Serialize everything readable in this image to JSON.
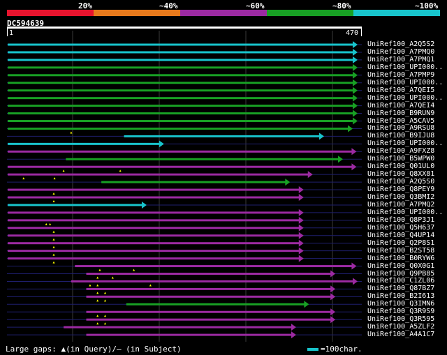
{
  "legend": {
    "segments": [
      {
        "color": "#e8142e"
      },
      {
        "color": "#e87a1c"
      },
      {
        "color": "#9c2aa2"
      },
      {
        "color": "#18a024"
      },
      {
        "color": "#18c4cc"
      }
    ],
    "labels": [
      "20%",
      "~40%",
      "~60%",
      "~80%",
      "~100%"
    ]
  },
  "query": {
    "id": "DC594639",
    "start": "1",
    "end": "470",
    "length": 470
  },
  "colors": {
    "cyan": "#18c4cc",
    "green": "#18a024",
    "purple": "#9c2aa2",
    "line": "#1f1f6e",
    "grid": "#3a3a3a",
    "marker": "#ffff00"
  },
  "hits": [
    {
      "label": "UniRef100_A2Q5S2",
      "color": "cyan",
      "start": 1,
      "end": 470,
      "gaps": []
    },
    {
      "label": "UniRef100_A7PMQ0",
      "color": "cyan",
      "start": 1,
      "end": 470,
      "gaps": []
    },
    {
      "label": "UniRef100_A7PMQ1",
      "color": "cyan",
      "start": 1,
      "end": 470,
      "gaps": []
    },
    {
      "label": "UniRef100_UPI000..",
      "color": "green",
      "start": 1,
      "end": 470,
      "gaps": []
    },
    {
      "label": "UniRef100_A7PMP9",
      "color": "green",
      "start": 1,
      "end": 470,
      "gaps": []
    },
    {
      "label": "UniRef100_UPI000..",
      "color": "green",
      "start": 1,
      "end": 467,
      "gaps": []
    },
    {
      "label": "UniRef100_A7QEI5",
      "color": "green",
      "start": 1,
      "end": 467,
      "gaps": []
    },
    {
      "label": "UniRef100_UPI000..",
      "color": "green",
      "start": 1,
      "end": 467,
      "gaps": []
    },
    {
      "label": "UniRef100_A7QEI4",
      "color": "green",
      "start": 1,
      "end": 467,
      "gaps": []
    },
    {
      "label": "UniRef100_B9RUN9",
      "color": "green",
      "start": 1,
      "end": 470,
      "gaps": []
    },
    {
      "label": "UniRef100_A5CAV5",
      "color": "green",
      "start": 1,
      "end": 467,
      "gaps": []
    },
    {
      "label": "UniRef100_A9RSU8",
      "color": "green",
      "start": 1,
      "end": 458,
      "gaps": [
        85
      ]
    },
    {
      "label": "UniRef100_B9IJU8",
      "color": "cyan",
      "start": 155,
      "end": 420,
      "gaps": []
    },
    {
      "label": "UniRef100_UPI000..",
      "color": "cyan",
      "start": 1,
      "end": 208,
      "gaps": []
    },
    {
      "label": "UniRef100_A9FXZ8",
      "color": "purple",
      "start": 1,
      "end": 463,
      "gaps": []
    },
    {
      "label": "UniRef100_B5WPW0",
      "color": "green",
      "start": 78,
      "end": 445,
      "gaps": []
    },
    {
      "label": "UniRef100_Q01UL0",
      "color": "purple",
      "start": 1,
      "end": 463,
      "gaps": [
        75,
        150
      ]
    },
    {
      "label": "UniRef100_Q8XX81",
      "color": "purple",
      "start": 1,
      "end": 405,
      "gaps": [
        22,
        63
      ]
    },
    {
      "label": "UniRef100_A2Q5S0",
      "color": "green",
      "start": 125,
      "end": 375,
      "gaps": []
    },
    {
      "label": "UniRef100_Q8PEY9",
      "color": "purple",
      "start": 1,
      "end": 393,
      "gaps": [
        62
      ]
    },
    {
      "label": "UniRef100_Q3BMI2",
      "color": "purple",
      "start": 1,
      "end": 393,
      "gaps": [
        62
      ]
    },
    {
      "label": "UniRef100_A7PMQ2",
      "color": "cyan",
      "start": 1,
      "end": 185,
      "gaps": []
    },
    {
      "label": "UniRef100_UPI000..",
      "color": "purple",
      "start": 1,
      "end": 393,
      "gaps": []
    },
    {
      "label": "UniRef100_Q8P3J1",
      "color": "purple",
      "start": 1,
      "end": 393,
      "gaps": [
        52,
        57
      ]
    },
    {
      "label": "UniRef100_Q5H637",
      "color": "purple",
      "start": 1,
      "end": 393,
      "gaps": [
        62
      ]
    },
    {
      "label": "UniRef100_Q4UP14",
      "color": "purple",
      "start": 1,
      "end": 393,
      "gaps": [
        62
      ]
    },
    {
      "label": "UniRef100_Q2P8S1",
      "color": "purple",
      "start": 1,
      "end": 393,
      "gaps": [
        62
      ]
    },
    {
      "label": "UniRef100_B2ST58",
      "color": "purple",
      "start": 1,
      "end": 393,
      "gaps": [
        62
      ]
    },
    {
      "label": "UniRef100_B0RYW6",
      "color": "purple",
      "start": 1,
      "end": 393,
      "gaps": [
        62
      ]
    },
    {
      "label": "UniRef100_Q0X0G1",
      "color": "purple",
      "start": 90,
      "end": 463,
      "gaps": [
        123,
        168
      ]
    },
    {
      "label": "UniRef100_Q9PB85",
      "color": "purple",
      "start": 105,
      "end": 435,
      "gaps": [
        120,
        140
      ]
    },
    {
      "label": "UniRef100_C1ZL06",
      "color": "purple",
      "start": 85,
      "end": 483,
      "gaps": [
        110,
        120,
        190
      ]
    },
    {
      "label": "UniRef100_Q87BZ7",
      "color": "purple",
      "start": 105,
      "end": 435,
      "gaps": [
        120,
        130
      ]
    },
    {
      "label": "UniRef100_B2I613",
      "color": "purple",
      "start": 105,
      "end": 435,
      "gaps": [
        120,
        130
      ]
    },
    {
      "label": "UniRef100_Q3IMN6",
      "color": "green",
      "start": 158,
      "end": 400,
      "gaps": []
    },
    {
      "label": "UniRef100_Q3R9S9",
      "color": "purple",
      "start": 105,
      "end": 435,
      "gaps": [
        120,
        130
      ]
    },
    {
      "label": "UniRef100_Q3R595",
      "color": "purple",
      "start": 105,
      "end": 435,
      "gaps": [
        120,
        130
      ]
    },
    {
      "label": "UniRef100_A5ZLF2",
      "color": "purple",
      "start": 75,
      "end": 383,
      "gaps": []
    },
    {
      "label": "UniRef100_A4A1C7",
      "color": "purple",
      "start": 105,
      "end": 383,
      "gaps": []
    }
  ],
  "footer": {
    "text": "Large gaps: ▲(in Query)/– (in Subject)",
    "scale_text": "=100char."
  }
}
